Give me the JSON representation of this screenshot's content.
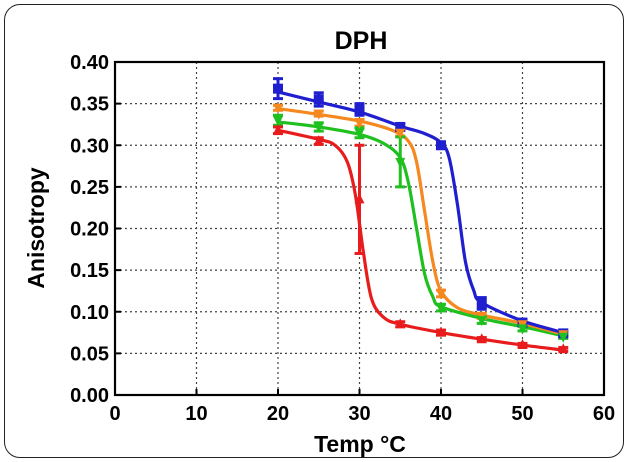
{
  "chart_data": {
    "type": "line",
    "title": "DPH",
    "xlabel": "Temp °C",
    "ylabel": "Anisotropy",
    "xlim": [
      0,
      60
    ],
    "ylim": [
      0.0,
      0.4
    ],
    "x_ticks": [
      "0",
      "10",
      "20",
      "30",
      "40",
      "50",
      "60"
    ],
    "y_ticks": [
      "0.00",
      "0.05",
      "0.10",
      "0.15",
      "0.20",
      "0.25",
      "0.30",
      "0.35",
      "0.40"
    ],
    "grid": true,
    "series": [
      {
        "color": "#1f1fd0",
        "marker": "square",
        "x": [
          20,
          25,
          30,
          35,
          40,
          45,
          50,
          55
        ],
        "y": [
          0.368,
          0.355,
          0.343,
          0.322,
          0.3,
          0.11,
          0.087,
          0.074
        ],
        "err": [
          0.012,
          0.008,
          0.007,
          0.004,
          0.003,
          0.007,
          0.003,
          0.003
        ],
        "curve": [
          [
            20,
            0.364
          ],
          [
            25,
            0.352
          ],
          [
            30,
            0.34
          ],
          [
            35,
            0.323
          ],
          [
            38,
            0.314
          ],
          [
            40,
            0.303
          ],
          [
            41,
            0.285
          ],
          [
            42,
            0.23
          ],
          [
            43,
            0.16
          ],
          [
            44,
            0.126
          ],
          [
            45,
            0.111
          ],
          [
            50,
            0.089
          ],
          [
            55,
            0.075
          ]
        ]
      },
      {
        "color": "#f5881f",
        "marker": "inverted-triangle",
        "x": [
          20,
          25,
          30,
          35,
          40,
          45,
          50,
          55
        ],
        "y": [
          0.345,
          0.338,
          0.327,
          0.315,
          0.122,
          0.095,
          0.085,
          0.073
        ],
        "err": [
          0.003,
          0.003,
          0.004,
          0.004,
          0.004,
          0.003,
          0.002,
          0.002
        ],
        "curve": [
          [
            20,
            0.344
          ],
          [
            25,
            0.337
          ],
          [
            30,
            0.329
          ],
          [
            34,
            0.318
          ],
          [
            36,
            0.305
          ],
          [
            37,
            0.28
          ],
          [
            38,
            0.22
          ],
          [
            39,
            0.16
          ],
          [
            40,
            0.125
          ],
          [
            42,
            0.105
          ],
          [
            45,
            0.096
          ],
          [
            50,
            0.086
          ],
          [
            55,
            0.073
          ]
        ]
      },
      {
        "color": "#1fc01f",
        "marker": "inverted-triangle",
        "x": [
          20,
          25,
          30,
          35,
          40,
          45,
          50,
          55
        ],
        "y": [
          0.33,
          0.322,
          0.315,
          0.28,
          0.105,
          0.09,
          0.08,
          0.07
        ],
        "err": [
          0.006,
          0.005,
          0.006,
          0.03,
          0.004,
          0.004,
          0.003,
          0.002
        ],
        "curve": [
          [
            20,
            0.328
          ],
          [
            25,
            0.322
          ],
          [
            30,
            0.313
          ],
          [
            33,
            0.302
          ],
          [
            35,
            0.285
          ],
          [
            36,
            0.255
          ],
          [
            37,
            0.2
          ],
          [
            38,
            0.145
          ],
          [
            39,
            0.118
          ],
          [
            40,
            0.106
          ],
          [
            45,
            0.092
          ],
          [
            50,
            0.082
          ],
          [
            55,
            0.071
          ]
        ]
      },
      {
        "color": "#e81c1c",
        "marker": "triangle",
        "x": [
          20,
          25,
          30,
          35,
          40,
          45,
          50,
          55
        ],
        "y": [
          0.318,
          0.305,
          0.235,
          0.085,
          0.075,
          0.067,
          0.06,
          0.055
        ],
        "err": [
          0.004,
          0.004,
          0.065,
          0.003,
          0.003,
          0.002,
          0.002,
          0.002
        ],
        "curve": [
          [
            20,
            0.318
          ],
          [
            25,
            0.307
          ],
          [
            27,
            0.3
          ],
          [
            28.5,
            0.28
          ],
          [
            29.5,
            0.24
          ],
          [
            30.5,
            0.17
          ],
          [
            31.5,
            0.115
          ],
          [
            33,
            0.093
          ],
          [
            35,
            0.085
          ],
          [
            40,
            0.075
          ],
          [
            45,
            0.067
          ],
          [
            50,
            0.06
          ],
          [
            55,
            0.054
          ]
        ]
      }
    ]
  }
}
